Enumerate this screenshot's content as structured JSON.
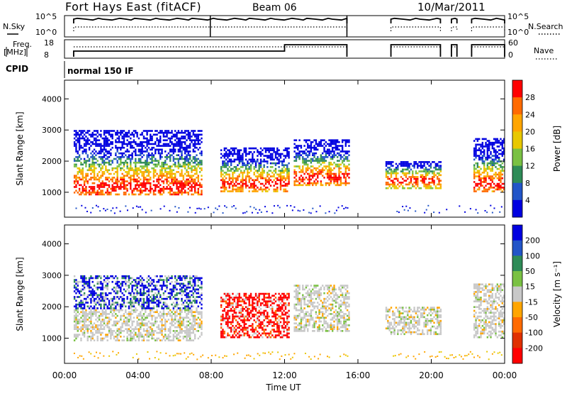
{
  "header": {
    "station": "Fort Hays East (fitACF)",
    "beam": "Beam 06",
    "date": "10/Mar/2011"
  },
  "strips": {
    "nsky_label": "N.Sky",
    "nsearch_label": "N.Search",
    "noise_ticks": [
      "10^5",
      "10^0"
    ],
    "freq_label_1": "Freq.",
    "freq_label_2": "[MHz]",
    "freq_ticks": [
      "18",
      "8"
    ],
    "nave_label": "Nave",
    "nave_ticks": [
      "60",
      "0"
    ],
    "cpid_label": "CPID",
    "cpid_value": "normal 150 IF"
  },
  "chart_data": [
    {
      "type": "heatmap",
      "name": "power-panel",
      "ylabel": "Slant Range [km]",
      "xlabel": "Time UT",
      "xlim": [
        0,
        24
      ],
      "ylim": [
        200,
        4600
      ],
      "x_ticks": [
        "00:00",
        "04:00",
        "08:00",
        "12:00",
        "16:00",
        "20:00",
        "00:00"
      ],
      "y_ticks": [
        1000,
        2000,
        3000,
        4000
      ],
      "colorbar": {
        "label": "Power [dB]",
        "ticks": [
          "28",
          "24",
          "20",
          "16",
          "12",
          "8",
          "4"
        ],
        "colors": [
          "#ff0000",
          "#ff6a00",
          "#ffa500",
          "#e8c800",
          "#7ac143",
          "#2e8b57",
          "#2255c8",
          "#0000e0"
        ]
      },
      "echo_regions": [
        {
          "t_start": 0.5,
          "t_end": 7.5,
          "r_low": 900,
          "r_high": 3000
        },
        {
          "t_start": 8.5,
          "t_end": 12.2,
          "r_low": 1000,
          "r_high": 2400
        },
        {
          "t_start": 12.5,
          "t_end": 15.5,
          "r_low": 1200,
          "r_high": 2700
        },
        {
          "t_start": 17.5,
          "t_end": 20.5,
          "r_low": 1100,
          "r_high": 2000
        },
        {
          "t_start": 22.3,
          "t_end": 24.0,
          "r_low": 1000,
          "r_high": 2700
        }
      ]
    },
    {
      "type": "heatmap",
      "name": "velocity-panel",
      "ylabel": "Slant Range [km]",
      "xlabel": "Time UT",
      "xlim": [
        0,
        24
      ],
      "ylim": [
        200,
        4600
      ],
      "x_ticks": [
        "00:00",
        "04:00",
        "08:00",
        "12:00",
        "16:00",
        "20:00",
        "00:00"
      ],
      "y_ticks": [
        1000,
        2000,
        3000,
        4000
      ],
      "colorbar": {
        "label": "Velocity [m s⁻¹]",
        "ticks": [
          "200",
          "100",
          "50",
          "15",
          "-15",
          "-50",
          "-100",
          "-200"
        ],
        "colors": [
          "#0000e0",
          "#2255c8",
          "#2e8b57",
          "#7ac143",
          "#c8c8c8",
          "#ffa500",
          "#ff6a00",
          "#e03000",
          "#ff0000"
        ]
      }
    }
  ]
}
